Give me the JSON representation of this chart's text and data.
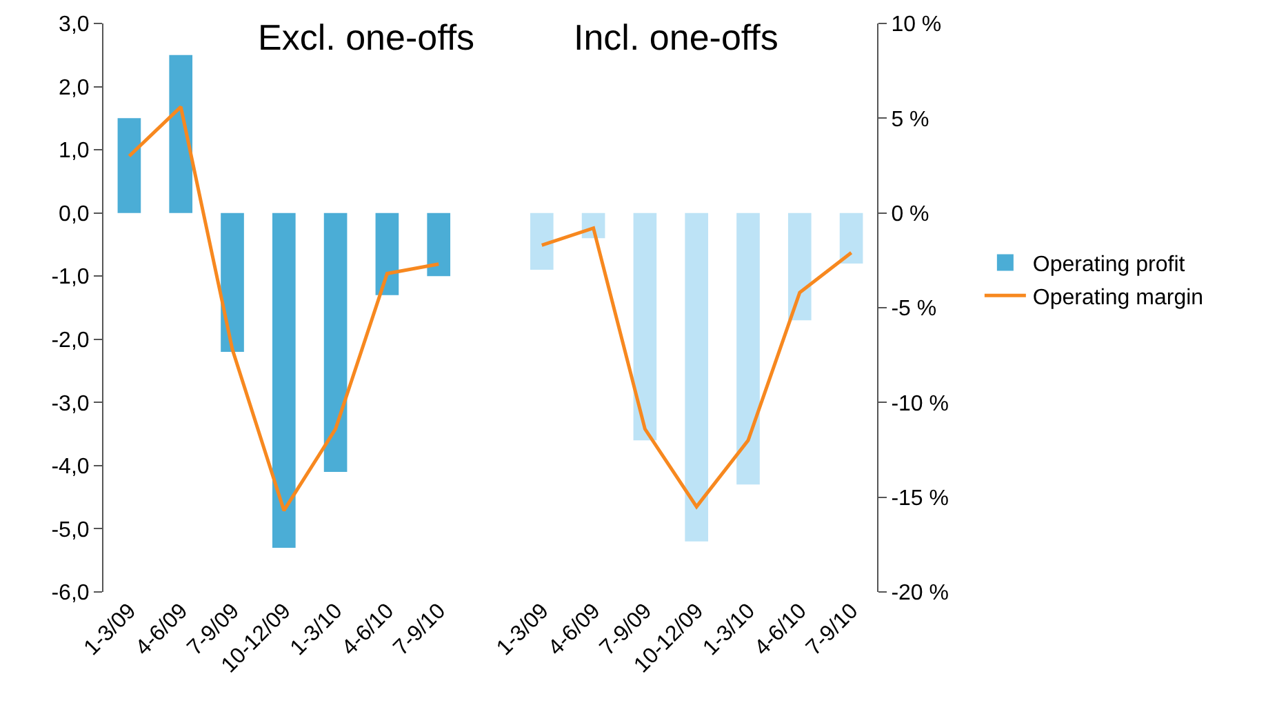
{
  "chart_data": {
    "type": "bar",
    "annotations": [
      "Excl. one-offs",
      "Incl. one-offs"
    ],
    "categories": [
      "1-3/09",
      "4-6/09",
      "7-9/09",
      "10-12/09",
      "1-3/10",
      "4-6/10",
      "7-9/10",
      null,
      "1-3/09",
      "4-6/09",
      "7-9/09",
      "10-12/09",
      "1-3/10",
      "4-6/10",
      "7-9/10"
    ],
    "series": [
      {
        "name": "Operating profit",
        "color": "#4badd6",
        "colors": [
          null,
          null,
          null,
          null,
          null,
          null,
          null,
          null,
          "#bde3f6",
          "#bde3f6",
          "#bde3f6",
          "#bde3f6",
          "#bde3f6",
          "#bde3f6",
          "#bde3f6"
        ],
        "values": [
          1.5,
          2.5,
          -2.2,
          -5.3,
          -4.1,
          -1.3,
          -1.0,
          null,
          -0.9,
          -0.4,
          -3.6,
          -5.2,
          -4.3,
          -1.7,
          -0.8
        ]
      },
      {
        "name": "Operating margin",
        "type": "line",
        "axis": "y2",
        "color": "#f7881f",
        "values": [
          3.0,
          5.6,
          -7.2,
          -15.7,
          -11.4,
          -3.2,
          -2.7,
          null,
          -1.7,
          -0.8,
          -11.4,
          -15.5,
          -12.0,
          -4.2,
          -2.1
        ]
      }
    ],
    "ylim": [
      -6,
      3
    ],
    "yticks": [
      {
        "value": -6,
        "label": "-6,0"
      },
      {
        "value": -5,
        "label": "-5,0"
      },
      {
        "value": -4,
        "label": "-4,0"
      },
      {
        "value": -3,
        "label": "-3,0"
      },
      {
        "value": -2,
        "label": "-2,0"
      },
      {
        "value": -1,
        "label": "-1,0"
      },
      {
        "value": 0,
        "label": "0,0"
      },
      {
        "value": 1,
        "label": "1,0"
      },
      {
        "value": 2,
        "label": "2,0"
      },
      {
        "value": 3,
        "label": "3,0"
      }
    ],
    "y2lim": [
      -20,
      10
    ],
    "y2ticks": [
      {
        "value": -20,
        "label": "-20 %"
      },
      {
        "value": -15,
        "label": "-15 %"
      },
      {
        "value": -10,
        "label": "-10 %"
      },
      {
        "value": -5,
        "label": "-5 %"
      },
      {
        "value": 0,
        "label": "0 %"
      },
      {
        "value": 5,
        "label": "5 %"
      },
      {
        "value": 10,
        "label": "10 %"
      }
    ],
    "grid": false,
    "legend": "right",
    "marker": "none",
    "line_style": "solid"
  }
}
